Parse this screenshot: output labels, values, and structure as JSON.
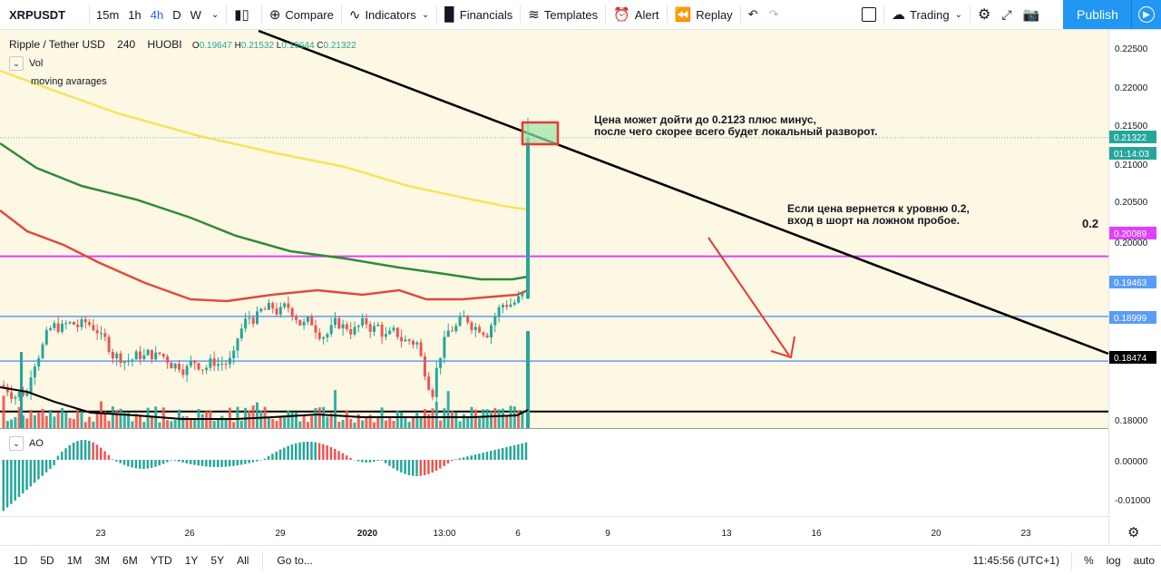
{
  "toolbar": {
    "symbol": "XRPUSDT",
    "intervals": [
      "15m",
      "1h",
      "4h",
      "D",
      "W"
    ],
    "compare": "Compare",
    "indicators": "Indicators",
    "financials": "Financials",
    "templates": "Templates",
    "alert": "Alert",
    "replay": "Replay",
    "trading": "Trading",
    "publish": "Publish"
  },
  "legend": {
    "title": "Ripple / Tether USD",
    "interval": "240",
    "exchange": "HUOBI",
    "o_label": "O",
    "o": "0.19647",
    "h_label": "H",
    "h": "0.21532",
    "l_label": "L",
    "l": "0.19644",
    "c_label": "C",
    "c": "0.21322"
  },
  "indicators": {
    "vol": "Vol",
    "ma": "moving avarages",
    "ao": "AO"
  },
  "annotations": {
    "note1_line1": "Цена может дойти до 0.2123 плюс минус,",
    "note1_line2": "после чего скорее всего будет локальный разворот.",
    "note2_line1": "Если цена вернется к уровню 0.2,",
    "note2_line2": "вход в шорт на ложном пробое.",
    "level_label": "0.2"
  },
  "price_axis": {
    "ticks": [
      "0.22500",
      "0.22000",
      "0.21500",
      "0.21000",
      "0.20500",
      "0.20000",
      "0.18000"
    ],
    "badges": [
      {
        "value": "0.21322",
        "color": "#26a69a"
      },
      {
        "value": "01:14:03",
        "color": "#26a69a"
      },
      {
        "value": "0.20089",
        "color": "#e040fb"
      },
      {
        "value": "0.19463",
        "color": "#5b9cf6"
      },
      {
        "value": "0.18999",
        "color": "#5b9cf6"
      },
      {
        "value": "0.18474",
        "color": "#000000"
      }
    ]
  },
  "ao_axis": {
    "ticks": [
      "0.00000",
      "-0.01000"
    ]
  },
  "time_axis": {
    "ticks": [
      "23",
      "26",
      "29",
      "2020",
      "13:00",
      "6",
      "9",
      "13",
      "16",
      "20",
      "23"
    ]
  },
  "bottom": {
    "ranges": [
      "1D",
      "5D",
      "1M",
      "3M",
      "6M",
      "YTD",
      "1Y",
      "5Y",
      "All"
    ],
    "goto": "Go to...",
    "time": "11:45:56 (UTC+1)",
    "percent": "%",
    "log": "log",
    "auto": "auto"
  },
  "colors": {
    "up": "#26a69a",
    "down": "#ef5350",
    "ma_yellow": "#f7e35a",
    "ma_green": "#2e8b3a",
    "ma_red": "#e04a3f",
    "magenta": "#e040fb",
    "blue_level": "#5b9cf6"
  },
  "chart_data": {
    "type": "candlestick",
    "series": [
      {
        "name": "moving avarages"
      },
      {
        "name": "Vol"
      },
      {
        "name": "AO"
      }
    ],
    "levels": [
      0.20089,
      0.19463,
      0.18999,
      0.18474
    ],
    "last_close": 0.21322
  }
}
